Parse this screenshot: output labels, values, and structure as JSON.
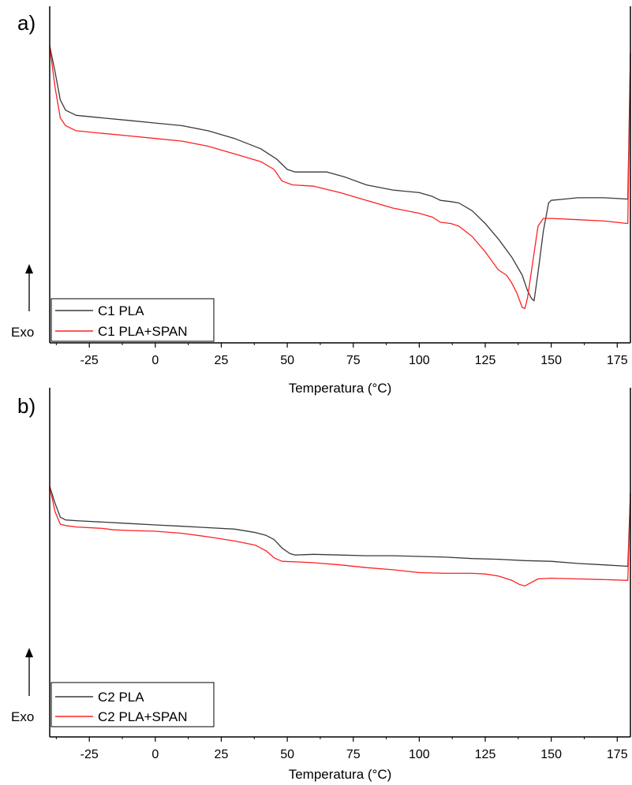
{
  "figure": {
    "background": "#ffffff"
  },
  "chart_data": [
    {
      "panel_label": "a)",
      "type": "line",
      "xlabel": "Temperatura (°C)",
      "ylabel": "",
      "xlim": [
        -40,
        180
      ],
      "xticks": [
        -25,
        0,
        25,
        50,
        75,
        100,
        125,
        150,
        175
      ],
      "y_units": "arbitrary heat flow (no y-axis ticks printed)",
      "ylim": [
        0,
        100
      ],
      "annotation": {
        "arrow_text": "Exo",
        "arrow_direction": "up"
      },
      "grid": false,
      "legend_position": "bottom-left",
      "series": [
        {
          "name": "C1 PLA",
          "color": "#3a3a3a",
          "points": [
            [
              -40,
              100
            ],
            [
              -38,
              90
            ],
            [
              -36,
              79
            ],
            [
              -34,
              75
            ],
            [
              -30,
              73
            ],
            [
              -20,
              72
            ],
            [
              -10,
              71
            ],
            [
              0,
              70
            ],
            [
              10,
              69
            ],
            [
              20,
              67
            ],
            [
              30,
              64
            ],
            [
              40,
              60
            ],
            [
              46,
              56
            ],
            [
              50,
              52
            ],
            [
              53,
              51
            ],
            [
              58,
              51
            ],
            [
              65,
              51
            ],
            [
              72,
              49
            ],
            [
              80,
              46
            ],
            [
              90,
              44
            ],
            [
              100,
              43
            ],
            [
              105,
              41.5
            ],
            [
              108,
              40
            ],
            [
              112,
              39.5
            ],
            [
              115,
              39
            ],
            [
              120,
              36
            ],
            [
              125,
              31
            ],
            [
              130,
              25
            ],
            [
              135,
              18
            ],
            [
              139,
              11
            ],
            [
              141,
              5
            ],
            [
              142.5,
              2
            ],
            [
              143.5,
              1
            ],
            [
              145,
              12
            ],
            [
              147,
              28
            ],
            [
              149,
              39
            ],
            [
              150,
              40
            ],
            [
              155,
              40.5
            ],
            [
              160,
              41
            ],
            [
              170,
              41
            ],
            [
              179,
              40.5
            ],
            [
              180,
              97
            ]
          ]
        },
        {
          "name": "C1 PLA+SPAN",
          "color": "#ff2020",
          "points": [
            [
              -40,
              100
            ],
            [
              -38,
              84
            ],
            [
              -36,
              72
            ],
            [
              -34,
              69
            ],
            [
              -30,
              67
            ],
            [
              -20,
              66
            ],
            [
              -10,
              65
            ],
            [
              0,
              64
            ],
            [
              10,
              63
            ],
            [
              20,
              61
            ],
            [
              30,
              58
            ],
            [
              40,
              55
            ],
            [
              45,
              52
            ],
            [
              48,
              47.5
            ],
            [
              52,
              46
            ],
            [
              60,
              45.5
            ],
            [
              70,
              43
            ],
            [
              80,
              40
            ],
            [
              90,
              37
            ],
            [
              100,
              35
            ],
            [
              105,
              33.5
            ],
            [
              108,
              31.5
            ],
            [
              112,
              31
            ],
            [
              115,
              30
            ],
            [
              120,
              26
            ],
            [
              125,
              20
            ],
            [
              130,
              13
            ],
            [
              133,
              11
            ],
            [
              135,
              8
            ],
            [
              137,
              4
            ],
            [
              139,
              -1.5
            ],
            [
              140,
              -2
            ],
            [
              141,
              2
            ],
            [
              143,
              16
            ],
            [
              145,
              30
            ],
            [
              147,
              33
            ],
            [
              150,
              33
            ],
            [
              160,
              32.5
            ],
            [
              170,
              32
            ],
            [
              179,
              31
            ],
            [
              180,
              97
            ]
          ]
        }
      ]
    },
    {
      "panel_label": "b)",
      "type": "line",
      "xlabel": "Temperatura (°C)",
      "ylabel": "",
      "xlim": [
        -40,
        180
      ],
      "xticks": [
        -25,
        0,
        25,
        50,
        75,
        100,
        125,
        150,
        175
      ],
      "y_units": "arbitrary heat flow (no y-axis ticks printed)",
      "ylim": [
        0,
        100
      ],
      "annotation": {
        "arrow_text": "Exo",
        "arrow_direction": "up"
      },
      "grid": false,
      "legend_position": "bottom-left",
      "series": [
        {
          "name": "C2 PLA",
          "color": "#3a3a3a",
          "points": [
            [
              -40,
              100
            ],
            [
              -38,
              88
            ],
            [
              -36,
              78
            ],
            [
              -34,
              76
            ],
            [
              -30,
              75.5
            ],
            [
              -20,
              74.5
            ],
            [
              -10,
              73.5
            ],
            [
              0,
              72.5
            ],
            [
              10,
              71.5
            ],
            [
              20,
              70.5
            ],
            [
              30,
              69.5
            ],
            [
              38,
              67
            ],
            [
              42,
              65
            ],
            [
              45,
              62
            ],
            [
              48,
              56
            ],
            [
              51,
              52
            ],
            [
              53,
              51
            ],
            [
              60,
              51.5
            ],
            [
              70,
              51
            ],
            [
              80,
              50.5
            ],
            [
              90,
              50.5
            ],
            [
              100,
              50
            ],
            [
              110,
              49.5
            ],
            [
              120,
              48.5
            ],
            [
              130,
              48
            ],
            [
              140,
              47
            ],
            [
              150,
              46.5
            ],
            [
              160,
              45
            ],
            [
              170,
              44
            ],
            [
              179,
              43
            ],
            [
              180,
              95
            ]
          ]
        },
        {
          "name": "C2 PLA+SPAN",
          "color": "#ff2020",
          "points": [
            [
              -40,
              100
            ],
            [
              -38,
              82
            ],
            [
              -36,
              73
            ],
            [
              -34,
              72
            ],
            [
              -30,
              71
            ],
            [
              -20,
              70
            ],
            [
              -16,
              69
            ],
            [
              -10,
              68.5
            ],
            [
              0,
              68
            ],
            [
              10,
              66.5
            ],
            [
              20,
              64
            ],
            [
              30,
              61
            ],
            [
              38,
              58
            ],
            [
              42,
              54
            ],
            [
              45,
              49
            ],
            [
              48,
              46.5
            ],
            [
              55,
              46
            ],
            [
              60,
              45.5
            ],
            [
              70,
              44
            ],
            [
              80,
              42
            ],
            [
              90,
              40.5
            ],
            [
              100,
              38.5
            ],
            [
              110,
              38
            ],
            [
              120,
              38
            ],
            [
              125,
              37.5
            ],
            [
              130,
              36
            ],
            [
              135,
              33
            ],
            [
              138,
              30
            ],
            [
              140,
              29
            ],
            [
              142,
              31
            ],
            [
              145,
              34
            ],
            [
              150,
              34.5
            ],
            [
              160,
              34
            ],
            [
              170,
              33.5
            ],
            [
              179,
              33
            ],
            [
              180,
              95
            ]
          ]
        }
      ]
    }
  ]
}
